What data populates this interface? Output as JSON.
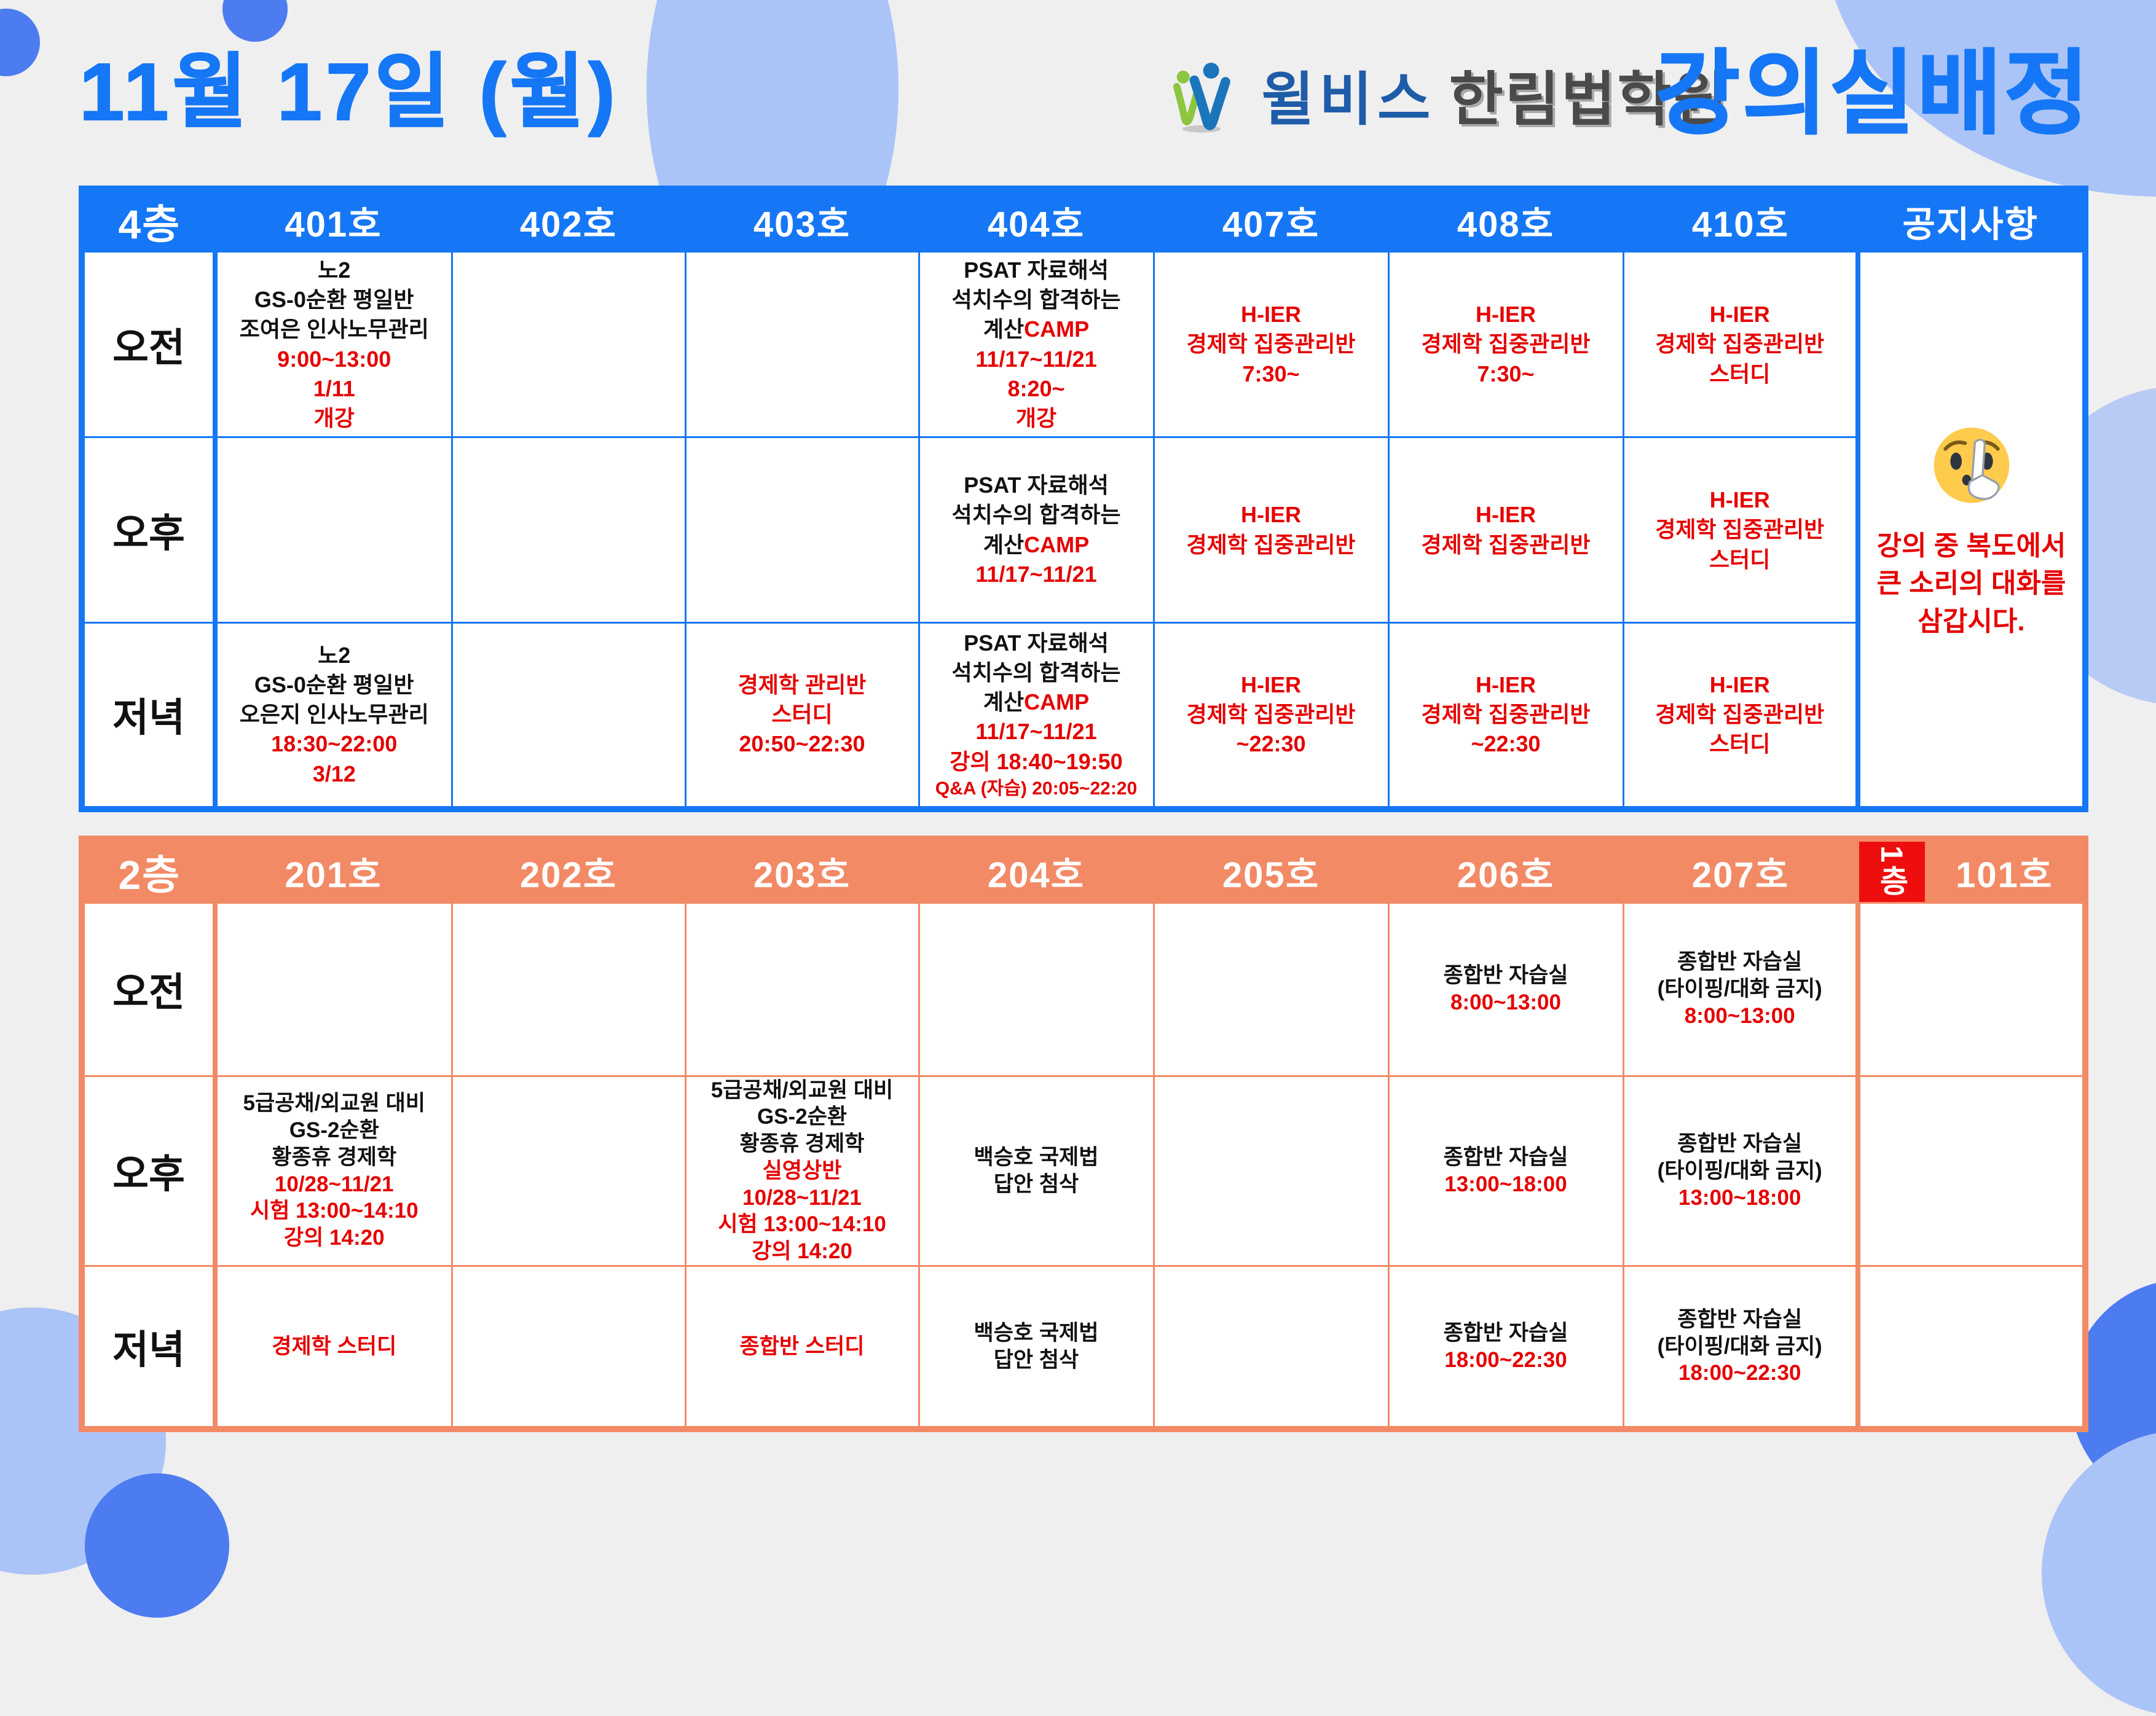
{
  "header": {
    "date_title": "11월 17일 (월)",
    "logo_brand": "윌비스",
    "logo_name": "한림법학원",
    "page_title": "강의실배정"
  },
  "colors": {
    "table1_accent": "#1577f5",
    "table2_accent": "#f28a66",
    "floor1_badge": "#ee0e0e",
    "highlight_red": "#e60000",
    "text_black": "#111111",
    "decor_blue": "#4c7cf0",
    "decor_periwinkle": "#abc4f8"
  },
  "floor4": {
    "floor_label": "4층",
    "rooms": [
      "401호",
      "402호",
      "403호",
      "404호",
      "407호",
      "408호",
      "410호"
    ],
    "notice_header": "공지사항",
    "notice": {
      "icon": "shushing-face",
      "lines": [
        "강의 중 복도에서",
        "큰 소리의 대화를",
        "삼갑시다."
      ]
    },
    "rows": [
      {
        "time": "오전",
        "cells": [
          [
            {
              "t": "노2",
              "c": "k"
            },
            {
              "t": "GS-0순환 평일반",
              "c": "k"
            },
            {
              "t": "조여은 인사노무관리",
              "c": "k"
            },
            {
              "t": "9:00~13:00",
              "c": "r"
            },
            {
              "t": "1/11",
              "c": "r"
            },
            {
              "t": "개강",
              "c": "r"
            }
          ],
          [],
          [],
          [
            {
              "t": "PSAT 자료해석",
              "c": "k"
            },
            {
              "t": "석치수의 합격하는",
              "c": "k"
            },
            {
              "seg": [
                {
                  "t": "계산",
                  "c": "k"
                },
                {
                  "t": "CAMP",
                  "c": "r"
                }
              ]
            },
            {
              "t": "11/17~11/21",
              "c": "r"
            },
            {
              "t": "8:20~",
              "c": "r"
            },
            {
              "t": "개강",
              "c": "r"
            }
          ],
          [
            {
              "t": "H-IER",
              "c": "r"
            },
            {
              "t": "경제학 집중관리반",
              "c": "r"
            },
            {
              "t": "7:30~",
              "c": "r"
            }
          ],
          [
            {
              "t": "H-IER",
              "c": "r"
            },
            {
              "t": "경제학 집중관리반",
              "c": "r"
            },
            {
              "t": "7:30~",
              "c": "r"
            }
          ],
          [
            {
              "t": "H-IER",
              "c": "r"
            },
            {
              "t": "경제학 집중관리반",
              "c": "r"
            },
            {
              "t": "스터디",
              "c": "r"
            }
          ]
        ]
      },
      {
        "time": "오후",
        "cells": [
          [],
          [],
          [],
          [
            {
              "t": "PSAT 자료해석",
              "c": "k"
            },
            {
              "t": "석치수의 합격하는",
              "c": "k"
            },
            {
              "seg": [
                {
                  "t": "계산",
                  "c": "k"
                },
                {
                  "t": "CAMP",
                  "c": "r"
                }
              ]
            },
            {
              "t": "11/17~11/21",
              "c": "r"
            }
          ],
          [
            {
              "t": "H-IER",
              "c": "r"
            },
            {
              "t": "경제학 집중관리반",
              "c": "r"
            }
          ],
          [
            {
              "t": "H-IER",
              "c": "r"
            },
            {
              "t": "경제학 집중관리반",
              "c": "r"
            }
          ],
          [
            {
              "t": "H-IER",
              "c": "r"
            },
            {
              "t": "경제학 집중관리반",
              "c": "r"
            },
            {
              "t": "스터디",
              "c": "r"
            }
          ]
        ]
      },
      {
        "time": "저녁",
        "cells": [
          [
            {
              "t": "노2",
              "c": "k"
            },
            {
              "t": "GS-0순환 평일반",
              "c": "k"
            },
            {
              "t": "오은지 인사노무관리",
              "c": "k"
            },
            {
              "t": "18:30~22:00",
              "c": "r"
            },
            {
              "t": "3/12",
              "c": "r"
            }
          ],
          [],
          [
            {
              "t": "경제학 관리반",
              "c": "r"
            },
            {
              "t": "스터디",
              "c": "r"
            },
            {
              "t": "20:50~22:30",
              "c": "r"
            }
          ],
          [
            {
              "t": "PSAT 자료해석",
              "c": "k"
            },
            {
              "t": "석치수의 합격하는",
              "c": "k"
            },
            {
              "seg": [
                {
                  "t": "계산",
                  "c": "k"
                },
                {
                  "t": "CAMP",
                  "c": "r"
                }
              ]
            },
            {
              "t": "11/17~11/21",
              "c": "r"
            },
            {
              "t": "강의 18:40~19:50",
              "c": "r"
            },
            {
              "t": "Q&A (자습) 20:05~22:20",
              "c": "r",
              "sm": true
            }
          ],
          [
            {
              "t": "H-IER",
              "c": "r"
            },
            {
              "t": "경제학 집중관리반",
              "c": "r"
            },
            {
              "t": "~22:30",
              "c": "r"
            }
          ],
          [
            {
              "t": "H-IER",
              "c": "r"
            },
            {
              "t": "경제학 집중관리반",
              "c": "r"
            },
            {
              "t": "~22:30",
              "c": "r"
            }
          ],
          [
            {
              "t": "H-IER",
              "c": "r"
            },
            {
              "t": "경제학 집중관리반",
              "c": "r"
            },
            {
              "t": "스터디",
              "c": "r"
            }
          ]
        ]
      }
    ]
  },
  "floor2": {
    "floor_label": "2층",
    "rooms": [
      "201호",
      "202호",
      "203호",
      "204호",
      "205호",
      "206호",
      "207호"
    ],
    "floor1_label": "1층",
    "room101": "101호",
    "rows": [
      {
        "time": "오전",
        "cells": [
          [],
          [],
          [],
          [],
          [],
          [
            {
              "t": "종합반 자습실",
              "c": "k"
            },
            {
              "t": "8:00~13:00",
              "c": "r"
            }
          ],
          [
            {
              "t": "종합반 자습실",
              "c": "k"
            },
            {
              "t": "(타이핑/대화 금지)",
              "c": "k"
            },
            {
              "t": "8:00~13:00",
              "c": "r"
            }
          ],
          []
        ]
      },
      {
        "time": "오후",
        "cells": [
          [
            {
              "t": "5급공채/외교원 대비",
              "c": "k"
            },
            {
              "t": "GS-2순환",
              "c": "k"
            },
            {
              "t": "황종휴 경제학",
              "c": "k"
            },
            {
              "t": "10/28~11/21",
              "c": "r"
            },
            {
              "t": "시험 13:00~14:10",
              "c": "r"
            },
            {
              "t": "강의 14:20",
              "c": "r"
            }
          ],
          [],
          [
            {
              "t": "5급공채/외교원 대비",
              "c": "k"
            },
            {
              "t": "GS-2순환",
              "c": "k"
            },
            {
              "t": "황종휴 경제학",
              "c": "k"
            },
            {
              "t": "실영상반",
              "c": "r"
            },
            {
              "t": "10/28~11/21",
              "c": "r"
            },
            {
              "t": "시험 13:00~14:10",
              "c": "r"
            },
            {
              "t": "강의 14:20",
              "c": "r"
            }
          ],
          [
            {
              "t": "백승호 국제법",
              "c": "k"
            },
            {
              "t": "답안 첨삭",
              "c": "k"
            }
          ],
          [],
          [
            {
              "t": "종합반 자습실",
              "c": "k"
            },
            {
              "t": "13:00~18:00",
              "c": "r"
            }
          ],
          [
            {
              "t": "종합반 자습실",
              "c": "k"
            },
            {
              "t": "(타이핑/대화 금지)",
              "c": "k"
            },
            {
              "t": "13:00~18:00",
              "c": "r"
            }
          ],
          []
        ]
      },
      {
        "time": "저녁",
        "cells": [
          [
            {
              "t": "경제학 스터디",
              "c": "r"
            }
          ],
          [],
          [
            {
              "t": "종합반 스터디",
              "c": "r"
            }
          ],
          [
            {
              "t": "백승호 국제법",
              "c": "k"
            },
            {
              "t": "답안 첨삭",
              "c": "k"
            }
          ],
          [],
          [
            {
              "t": "종합반 자습실",
              "c": "k"
            },
            {
              "t": "18:00~22:30",
              "c": "r"
            }
          ],
          [
            {
              "t": "종합반 자습실",
              "c": "k"
            },
            {
              "t": "(타이핑/대화 금지)",
              "c": "k"
            },
            {
              "t": "18:00~22:30",
              "c": "r"
            }
          ],
          []
        ]
      }
    ]
  }
}
